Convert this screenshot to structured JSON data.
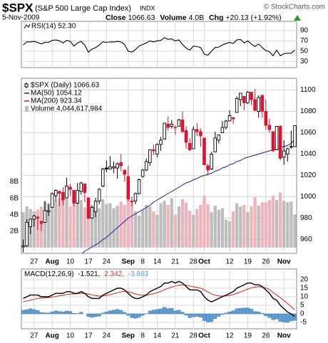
{
  "header": {
    "title": "$SPX",
    "subtitle": "(S&P 500 Large Cap Index)",
    "exchange": "INDX",
    "credit": "© StockCharts.com",
    "date": "5-Nov-2009",
    "stats": [
      {
        "label": "Close",
        "value": "1066.63"
      },
      {
        "label": "Volume",
        "value": "4.0B"
      },
      {
        "label": "Chg",
        "value": "+20.13 (+1.92%)"
      }
    ]
  },
  "chart_data": [
    {
      "type": "line",
      "label": "RSI(14) 52.30",
      "color": "#000000",
      "ylim": [
        18,
        108
      ],
      "yticks": [
        90,
        70,
        50,
        30
      ],
      "grid": true,
      "values": [
        62,
        68,
        68,
        69,
        67,
        64,
        67,
        67,
        71,
        72,
        70,
        66,
        71,
        69,
        60,
        66,
        69,
        62,
        48,
        54,
        57,
        62,
        68,
        67,
        68,
        68,
        69,
        68,
        63,
        50,
        48,
        53,
        60,
        63,
        66,
        70,
        68,
        70,
        71,
        76,
        73,
        74,
        70,
        72,
        63,
        56,
        52,
        60,
        59,
        57,
        44,
        42,
        50,
        57,
        58,
        62,
        65,
        67,
        65,
        72,
        73,
        66,
        70,
        64,
        59,
        64,
        57,
        51,
        49,
        41,
        52,
        41,
        45,
        46,
        46,
        52.3
      ]
    },
    {
      "type": "candlestick",
      "name": "$SPX (Daily) 1066.63",
      "up_color": "#000000",
      "down_color": "#e0102e",
      "ylim": [
        947,
        1111
      ],
      "yticks": [
        960,
        980,
        1000,
        1020,
        1040,
        1060,
        1080,
        1100
      ],
      "grid": true,
      "categories": [
        null,
        null,
        null,
        "27",
        null,
        null,
        null,
        null,
        "Aug",
        null,
        null,
        null,
        null,
        "10",
        null,
        null,
        null,
        null,
        "17",
        null,
        null,
        null,
        null,
        "24",
        null,
        null,
        null,
        null,
        null,
        "Sep",
        null,
        null,
        null,
        "8",
        null,
        null,
        null,
        "14",
        null,
        null,
        null,
        null,
        "21",
        null,
        null,
        null,
        null,
        "28",
        null,
        null,
        "Oct",
        null,
        null,
        null,
        null,
        null,
        null,
        "12",
        null,
        null,
        null,
        null,
        "19",
        null,
        null,
        null,
        null,
        "26",
        null,
        null,
        null,
        null,
        "Nov",
        null,
        null,
        null
      ],
      "open": [
        953,
        954,
        972,
        979,
        981,
        977,
        976,
        986,
        990,
        1001,
        1005,
        1004,
        999,
        1009,
        1006,
        994,
        1005,
        1012,
        999,
        980,
        986,
        996,
        1010,
        1027,
        1026,
        1027,
        1027,
        1032,
        1025,
        1019,
        996,
        996,
        1003,
        1019,
        1025,
        1032,
        1044,
        1040,
        1049,
        1054,
        1068,
        1066,
        1065,
        1066,
        1072,
        1062,
        1050,
        1045,
        1063,
        1061,
        1055,
        1029,
        1026,
        1042,
        1053,
        1060,
        1065,
        1071,
        1074,
        1079,
        1091,
        1094,
        1088,
        1098,
        1091,
        1080,
        1095,
        1080,
        1067,
        1061,
        1044,
        1066,
        1037,
        1040,
        1047,
        1047
      ],
      "high": [
        960,
        979,
        979,
        983,
        982,
        977,
        996,
        993,
        1004,
        1007,
        1006,
        1009,
        1018,
        1012,
        1006,
        1013,
        1014,
        1012,
        999,
        991,
        999,
        1008,
        1027,
        1034,
        1038,
        1033,
        1032,
        1040,
        1025,
        1029,
        1000,
        1004,
        1017,
        1026,
        1036,
        1044,
        1049,
        1050,
        1056,
        1069,
        1075,
        1072,
        1067,
        1073,
        1080,
        1066,
        1055,
        1066,
        1069,
        1064,
        1055,
        1031,
        1042,
        1061,
        1058,
        1071,
        1072,
        1081,
        1075,
        1094,
        1097,
        1094,
        1099,
        1098,
        1101,
        1095,
        1095,
        1091,
        1073,
        1061,
        1066,
        1067,
        1053,
        1046,
        1062,
        1067
      ],
      "low": [
        948,
        953,
        965,
        972,
        969,
        968,
        976,
        982,
        990,
        996,
        991,
        992,
        999,
        1001,
        991,
        993,
        1002,
        995,
        979,
        980,
        981,
        993,
        1009,
        1023,
        1026,
        1022,
        1017,
        1024,
        1014,
        996,
        991,
        993,
        1002,
        1018,
        1024,
        1029,
        1039,
        1037,
        1043,
        1054,
        1062,
        1064,
        1058,
        1066,
        1060,
        1045,
        1043,
        1045,
        1057,
        1047,
        1030,
        1020,
        1025,
        1042,
        1050,
        1060,
        1063,
        1071,
        1068,
        1079,
        1085,
        1081,
        1087,
        1086,
        1080,
        1074,
        1074,
        1063,
        1060,
        1042,
        1044,
        1034,
        1030,
        1033,
        1045,
        1047
      ],
      "close": [
        954,
        976,
        979,
        982,
        980,
        975,
        987,
        987,
        1003,
        1006,
        1003,
        997,
        1010,
        1007,
        994,
        1006,
        1013,
        1004,
        980,
        990,
        996,
        1007,
        1026,
        1026,
        1028,
        1028,
        1031,
        1029,
        1021,
        998,
        995,
        1003,
        1016,
        1025,
        1033,
        1044,
        1043,
        1049,
        1053,
        1069,
        1065,
        1068,
        1065,
        1072,
        1061,
        1051,
        1044,
        1063,
        1061,
        1057,
        1030,
        1025,
        1040,
        1055,
        1058,
        1065,
        1071,
        1076,
        1073,
        1092,
        1097,
        1088,
        1098,
        1091,
        1081,
        1093,
        1080,
        1067,
        1063,
        1043,
        1066,
        1036,
        1043,
        1045,
        1047,
        1066.63
      ],
      "series": [
        {
          "name": "MA(50) 1054.12",
          "color": "#1c1c8f",
          "values": [
            null,
            null,
            null,
            null,
            null,
            null,
            null,
            null,
            null,
            null,
            null,
            null,
            null,
            null,
            null,
            null,
            946,
            949,
            951,
            953,
            955,
            957,
            960,
            962,
            965,
            968,
            971,
            974,
            977,
            980,
            982,
            984,
            986,
            988,
            990,
            992,
            995,
            997,
            999,
            1001,
            1003,
            1005,
            1007,
            1009,
            1011,
            1013,
            1014,
            1016,
            1017,
            1019,
            1020,
            1021,
            1022,
            1024,
            1025,
            1027,
            1028,
            1030,
            1031,
            1033,
            1034,
            1036,
            1037,
            1038,
            1039,
            1040,
            1041,
            1042,
            1043,
            1044,
            1045,
            1046,
            1047,
            1048,
            1050,
            1054.12
          ]
        },
        {
          "name": "MA(200) 923.34",
          "color": "#e0102e"
        }
      ],
      "volume": {
        "name": "Volume 4,044,617,984",
        "up_color": "#bdbdbd",
        "down_color": "#efb3bc",
        "ylim": [
          -0.7,
          20.6
        ],
        "yticks": [
          {
            "value": 2,
            "label": "2B"
          },
          {
            "value": 4,
            "label": "4B"
          },
          {
            "value": 6,
            "label": "6B"
          },
          {
            "value": 8,
            "label": "8B"
          }
        ],
        "values": [
          4.3,
          5.0,
          4.7,
          4.4,
          4.6,
          5.0,
          5.6,
          5.4,
          5.6,
          5.7,
          6.0,
          5.9,
          6.2,
          5.0,
          5.3,
          5.7,
          5.8,
          4.9,
          4.9,
          5.2,
          5.0,
          4.8,
          5.9,
          5.3,
          5.4,
          4.8,
          5.1,
          5.6,
          5.2,
          6.0,
          5.4,
          4.4,
          3.9,
          4.6,
          5.2,
          5.0,
          4.4,
          4.0,
          5.4,
          5.7,
          5.2,
          6.0,
          4.0,
          5.0,
          5.9,
          5.5,
          4.5,
          4.0,
          4.7,
          5.2,
          6.3,
          5.3,
          4.3,
          5.1,
          4.6,
          4.8,
          3.4,
          3.2,
          4.4,
          5.4,
          5.0,
          5.2,
          4.3,
          5.0,
          6.1,
          5.1,
          5.5,
          5.5,
          5.8,
          6.3,
          5.8,
          6.7,
          5.7,
          5.5,
          5.6,
          4.04
        ]
      }
    },
    {
      "type": "macd",
      "label": "MACD(12,26,9)",
      "ylim": [
        -8.75,
        26.25
      ],
      "yticks": [
        20,
        15,
        10,
        5,
        0,
        -5
      ],
      "grid": true,
      "series": [
        {
          "name": "-1.521,",
          "color": "#000000",
          "values": [
            9,
            10,
            11,
            11,
            11,
            10,
            10,
            10,
            11,
            12,
            12,
            12,
            13,
            13,
            12,
            12,
            13,
            12,
            10,
            9,
            9,
            9,
            11,
            12,
            13,
            14,
            15,
            15,
            14,
            12,
            10,
            9,
            9,
            10,
            11,
            13,
            14,
            15,
            16,
            18,
            18,
            19,
            18,
            19,
            18,
            16,
            14,
            14,
            14,
            13,
            10,
            8,
            7,
            8,
            9,
            10,
            11,
            12,
            13,
            15,
            16,
            17,
            18,
            18,
            17,
            17,
            16,
            14,
            12,
            9,
            8,
            5,
            3,
            1,
            0,
            -1.521
          ]
        },
        {
          "name": "2.342,",
          "color": "#e0302c",
          "values": [
            7,
            7.5,
            8,
            8.5,
            9,
            9.2,
            9.4,
            9.5,
            9.8,
            10.2,
            10.6,
            10.9,
            11.3,
            11.6,
            11.7,
            11.8,
            12,
            12,
            11.6,
            11.1,
            10.7,
            10.4,
            10.5,
            10.8,
            11.2,
            11.8,
            12.4,
            12.9,
            13.1,
            12.9,
            12.3,
            11.6,
            11.1,
            10.9,
            10.9,
            11.3,
            11.8,
            12.4,
            13.1,
            14.1,
            14.9,
            15.7,
            16.2,
            16.8,
            17,
            16.8,
            16.3,
            15.8,
            15.5,
            15,
            14,
            12.8,
            11.6,
            10.9,
            10.5,
            10.4,
            10.5,
            10.8,
            11.2,
            12,
            12.8,
            13.6,
            14.5,
            15.2,
            15.6,
            15.9,
            15.6,
            15.2,
            14.2,
            12.5,
            11,
            9.5,
            7.8,
            6,
            4.2,
            2.342
          ]
        },
        {
          "name": "-3.863",
          "color": "#5d9fd6",
          "values": [
            2,
            2.5,
            3,
            2.5,
            2,
            0.8,
            0.6,
            0.5,
            1.2,
            1.8,
            1.4,
            1.1,
            1.7,
            1.4,
            0.3,
            0.2,
            1,
            0,
            -1.6,
            -2.1,
            -1.7,
            -1.4,
            0.5,
            1.2,
            1.8,
            2.2,
            2.6,
            2.1,
            0.9,
            -0.9,
            -2.3,
            -2.6,
            -2.1,
            -0.9,
            0.1,
            1.7,
            2.2,
            2.6,
            2.9,
            3.9,
            3.1,
            3.3,
            1.8,
            2.2,
            1,
            -0.8,
            -2.3,
            -1.8,
            -1.5,
            -2,
            -4,
            -4.8,
            -4.6,
            -2.9,
            -1.5,
            -0.4,
            0.5,
            1.2,
            1.8,
            3,
            3.2,
            3.4,
            3.5,
            2.8,
            1.4,
            1.1,
            0.4,
            -1.2,
            -2.2,
            -3.5,
            -3,
            -4.5,
            -4.8,
            -5,
            -4.2,
            -3.863
          ]
        }
      ]
    }
  ]
}
